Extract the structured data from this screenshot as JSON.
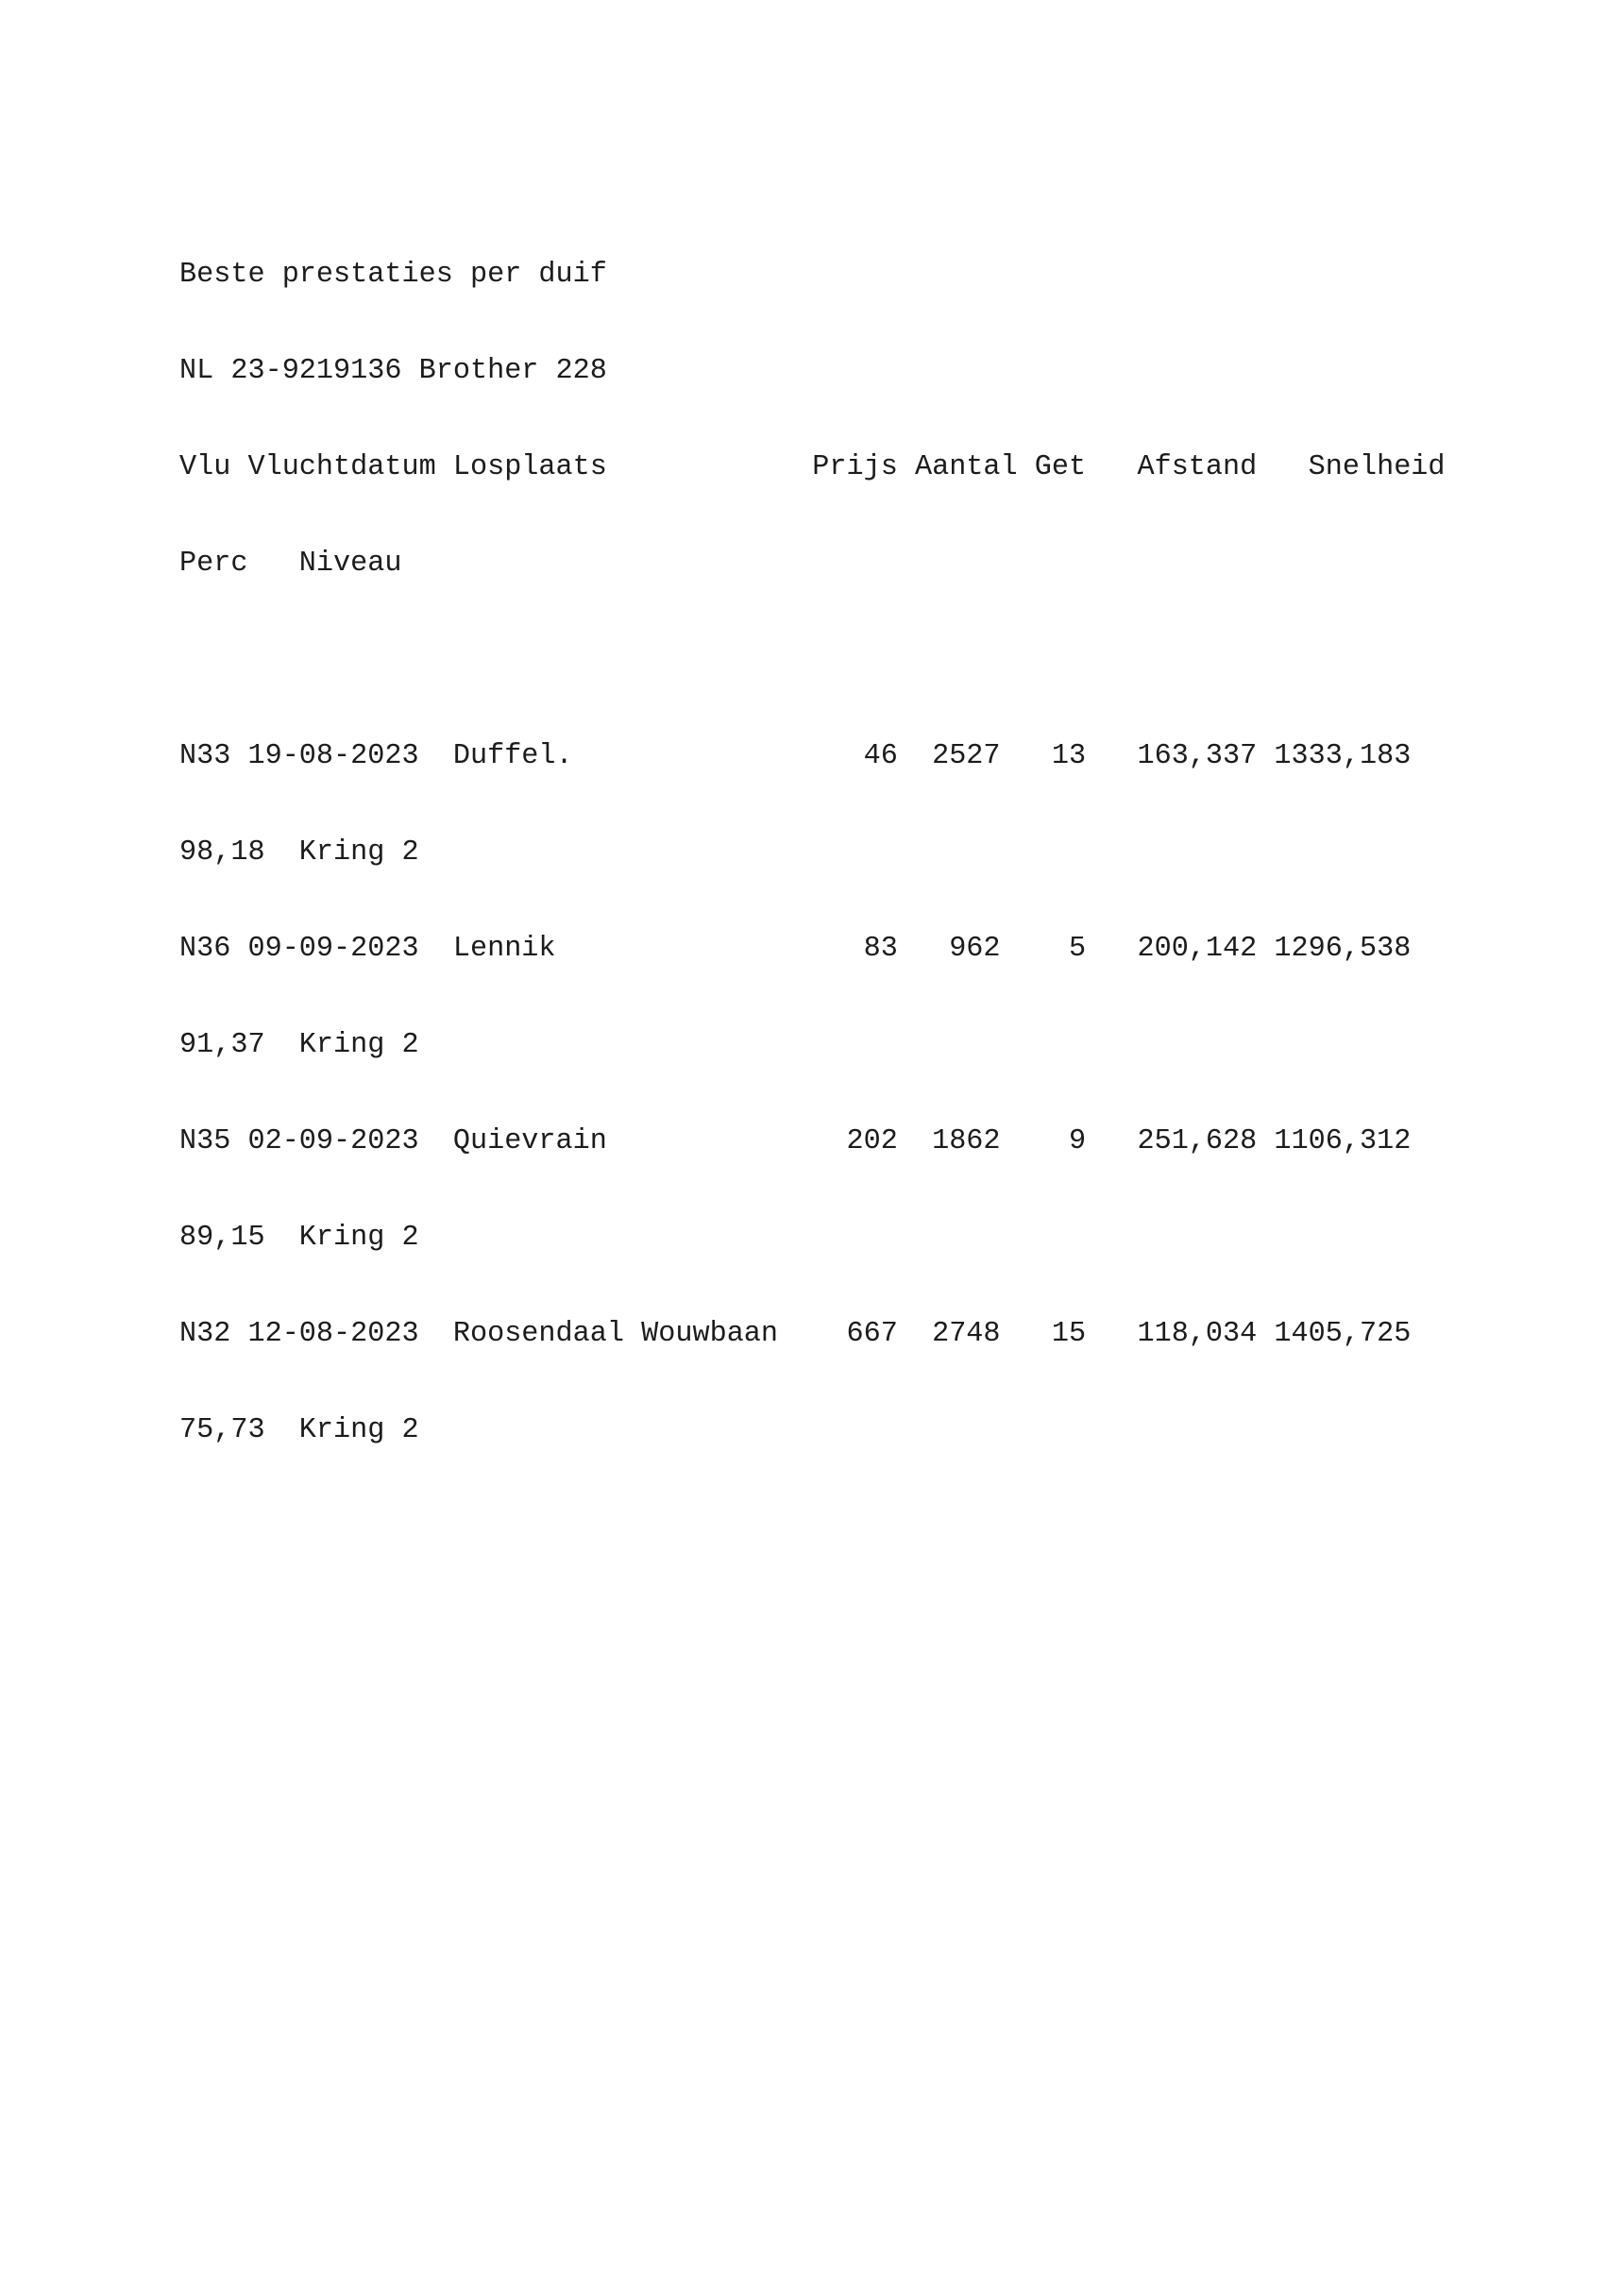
{
  "page": {
    "background": "#ffffff",
    "text_color": "#1c1c1c"
  },
  "report": {
    "title": "Beste prestaties per duif",
    "pigeon_id": "NL 23-9219136 Brother 228",
    "lines": [
      "Beste prestaties per duif",
      "NL 23-9219136 Brother 228",
      "Vlu Vluchtdatum Losplaats            Prijs Aantal Get   Afstand   Snelheid",
      "Perc   Niveau",
      "",
      "N33 19-08-2023  Duffel.                 46  2527   13   163,337 1333,183",
      "98,18  Kring 2",
      "N36 09-09-2023  Lennik                  83   962    5   200,142 1296,538",
      "91,37  Kring 2",
      "N35 02-09-2023  Quievrain              202  1862    9   251,628 1106,312",
      "89,15  Kring 2",
      "N32 12-08-2023  Roosendaal Wouwbaan    667  2748   15   118,034 1405,725",
      "75,73  Kring 2"
    ],
    "table": {
      "columns": [
        "Vlu",
        "Vluchtdatum",
        "Losplaats",
        "Prijs",
        "Aantal",
        "Get",
        "Afstand",
        "Snelheid",
        "Perc",
        "Niveau"
      ],
      "rows": [
        {
          "vlu": "N33",
          "vluchtdatum": "19-08-2023",
          "losplaats": "Duffel.",
          "prijs": "46",
          "aantal": "2527",
          "get": "13",
          "afstand": "163,337",
          "snelheid": "1333,183",
          "perc": "98,18",
          "niveau": "Kring 2"
        },
        {
          "vlu": "N36",
          "vluchtdatum": "09-09-2023",
          "losplaats": "Lennik",
          "prijs": "83",
          "aantal": "962",
          "get": "5",
          "afstand": "200,142",
          "snelheid": "1296,538",
          "perc": "91,37",
          "niveau": "Kring 2"
        },
        {
          "vlu": "N35",
          "vluchtdatum": "02-09-2023",
          "losplaats": "Quievrain",
          "prijs": "202",
          "aantal": "1862",
          "get": "9",
          "afstand": "251,628",
          "snelheid": "1106,312",
          "perc": "89,15",
          "niveau": "Kring 2"
        },
        {
          "vlu": "N32",
          "vluchtdatum": "12-08-2023",
          "losplaats": "Roosendaal Wouwbaan",
          "prijs": "667",
          "aantal": "2748",
          "get": "15",
          "afstand": "118,034",
          "snelheid": "1405,725",
          "perc": "75,73",
          "niveau": "Kring 2"
        }
      ]
    }
  }
}
